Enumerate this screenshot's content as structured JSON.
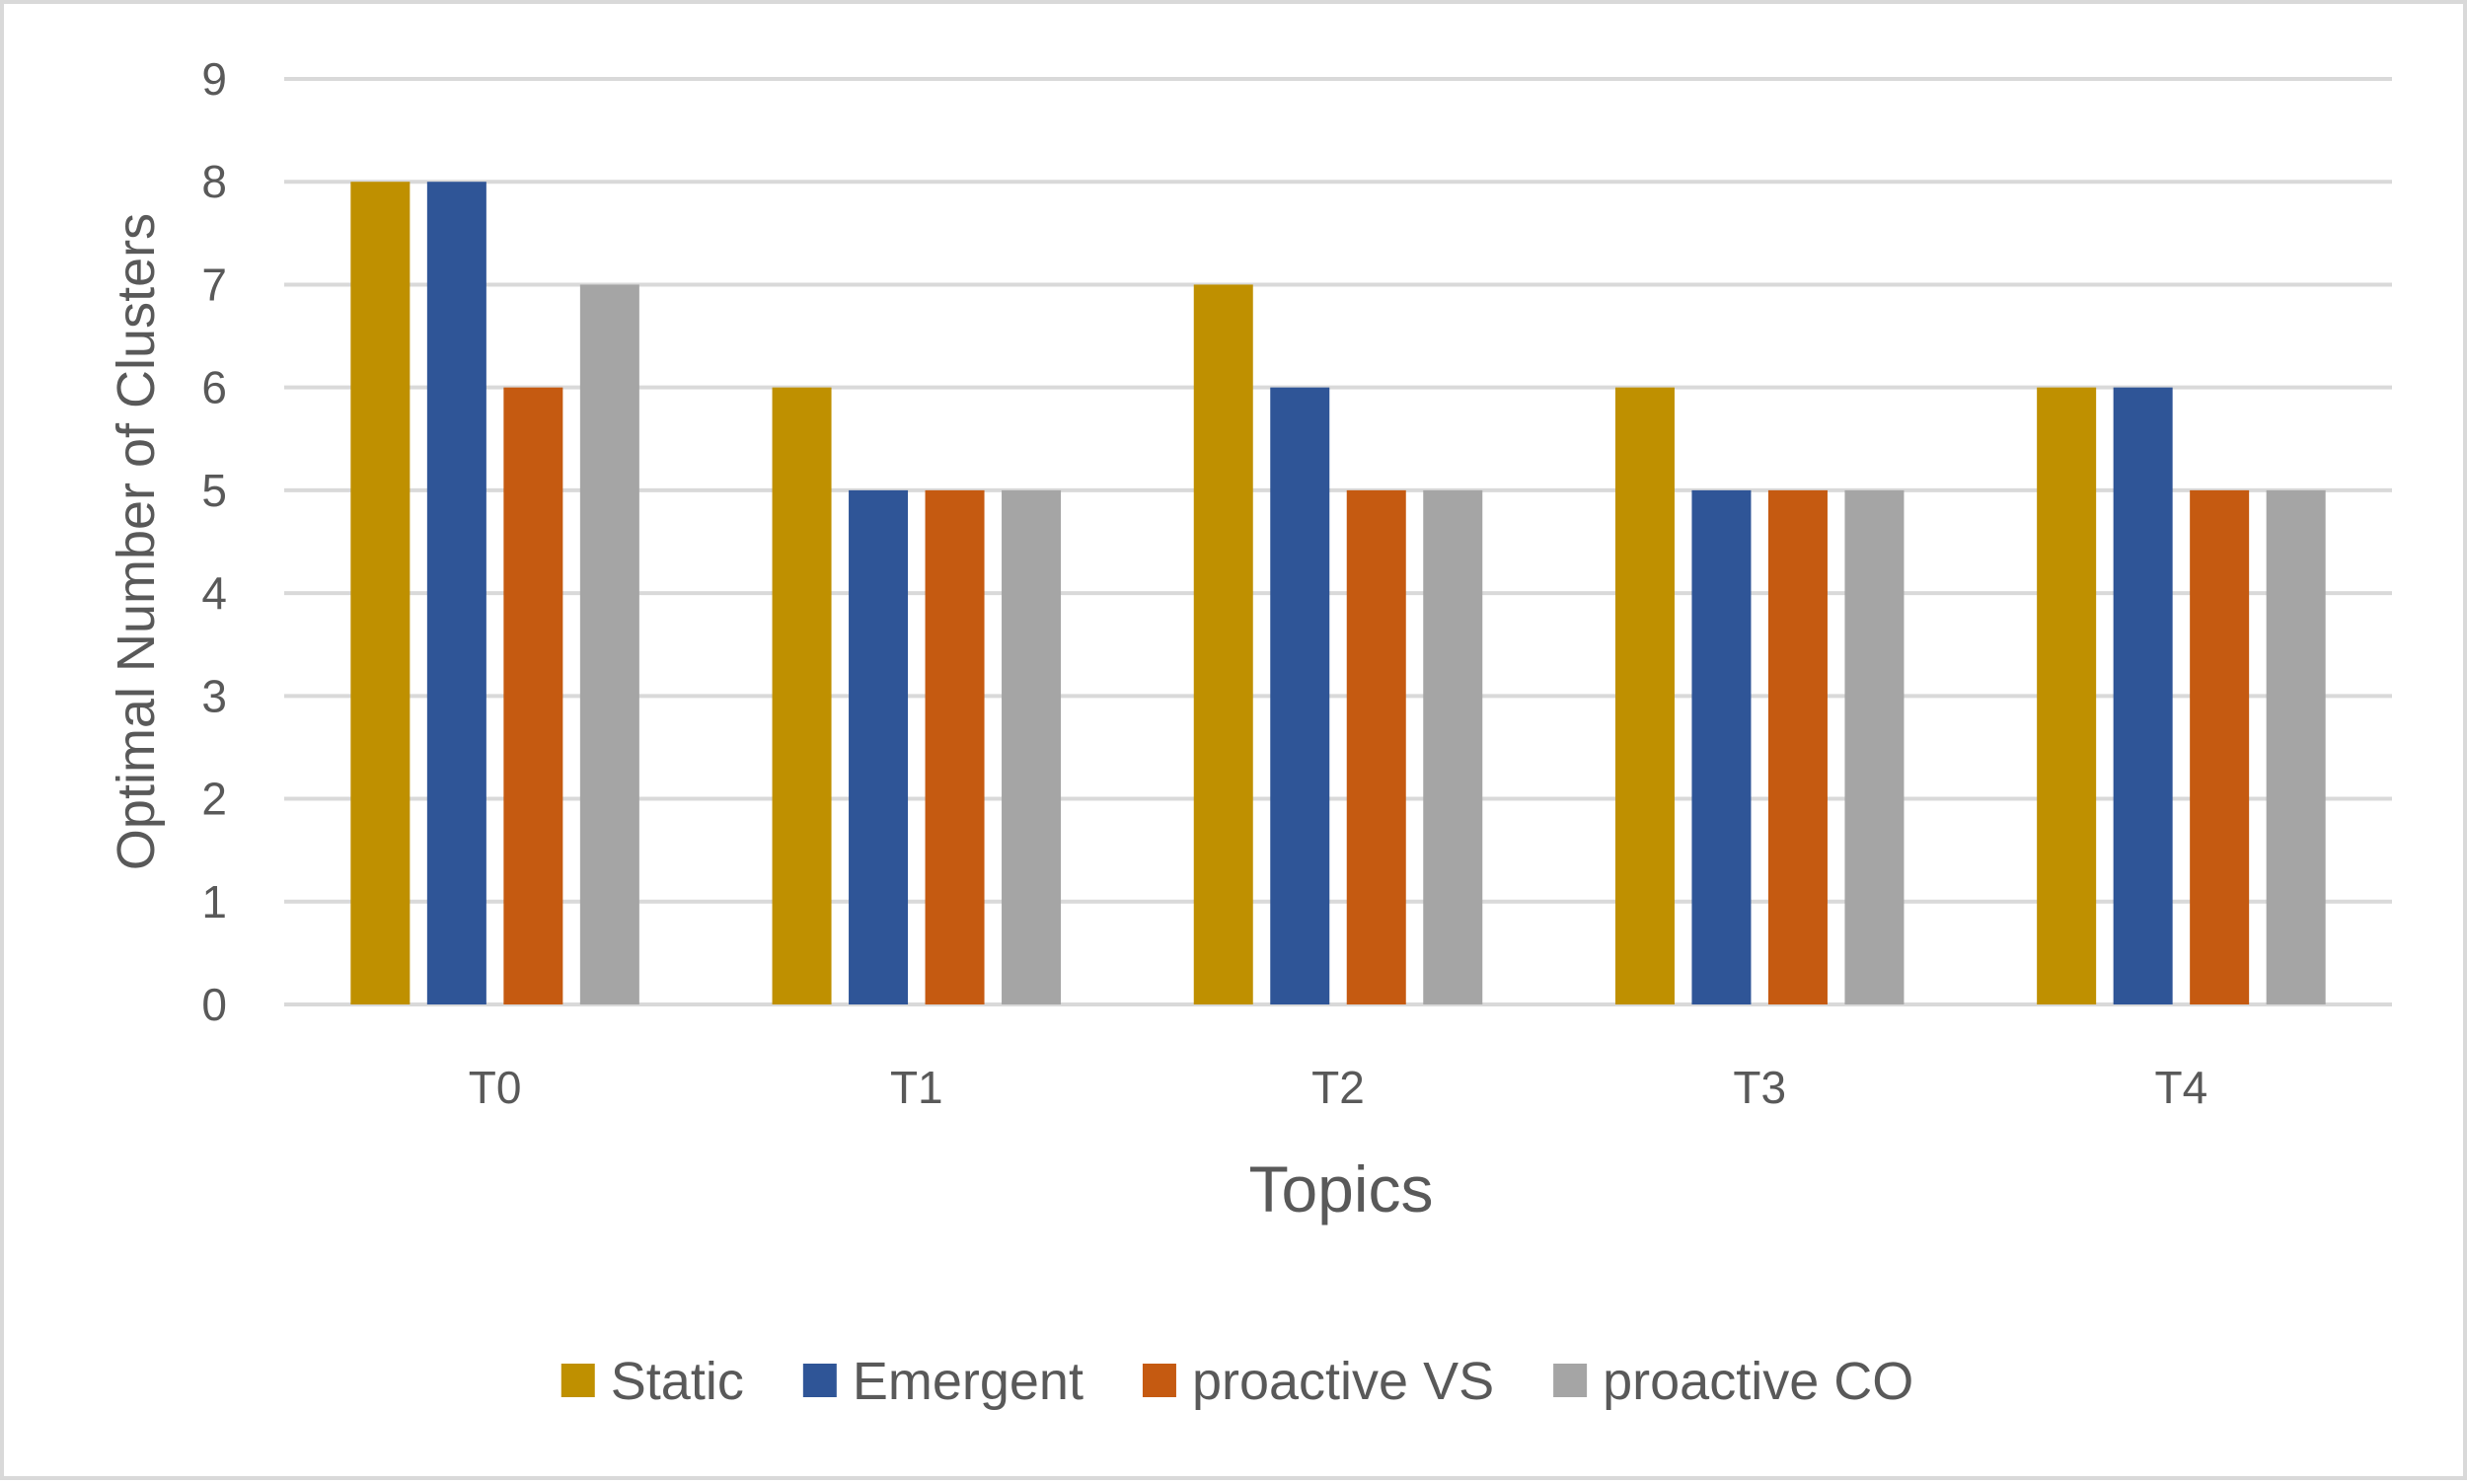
{
  "chart_data": {
    "type": "bar",
    "title": "",
    "xlabel": "Topics",
    "ylabel": "Optimal Number of Clusters",
    "categories": [
      "T0",
      "T1",
      "T2",
      "T3",
      "T4"
    ],
    "series": [
      {
        "name": "Static",
        "color": "#bf9000",
        "values": [
          8,
          6,
          7,
          6,
          6
        ]
      },
      {
        "name": "Emergent",
        "color": "#2f5597",
        "values": [
          8,
          5,
          6,
          5,
          6
        ]
      },
      {
        "name": "proactive VS",
        "color": "#c55a11",
        "values": [
          6,
          5,
          5,
          5,
          5
        ]
      },
      {
        "name": "proactive CO",
        "color": "#a5a5a5",
        "values": [
          7,
          5,
          5,
          5,
          5
        ]
      }
    ],
    "yticks": [
      "0",
      "1",
      "2",
      "3",
      "4",
      "5",
      "6",
      "7",
      "8",
      "9"
    ],
    "ylim": [
      0,
      9
    ],
    "grid": true,
    "legend_position": "bottom"
  },
  "colors": {
    "grid": "#d9d9d9",
    "text": "#595959",
    "frame": "#d9d9d9"
  }
}
